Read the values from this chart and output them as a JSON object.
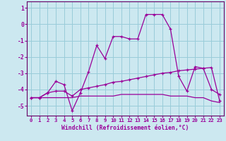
{
  "xlabel": "Windchill (Refroidissement éolien,°C)",
  "background_color": "#cce8f0",
  "grid_color": "#99ccd9",
  "line_color": "#990099",
  "spine_color": "#660066",
  "hours": [
    0,
    1,
    2,
    3,
    4,
    5,
    6,
    7,
    8,
    9,
    10,
    11,
    12,
    13,
    14,
    15,
    16,
    17,
    18,
    19,
    20,
    21,
    22,
    23
  ],
  "series1": [
    -4.5,
    -4.5,
    -4.2,
    -3.5,
    -3.7,
    -5.3,
    -4.2,
    -2.9,
    -1.3,
    -2.1,
    -0.75,
    -0.75,
    -0.9,
    -0.9,
    0.6,
    0.6,
    0.6,
    -0.3,
    -3.2,
    -4.1,
    -2.6,
    -2.7,
    -4.0,
    -4.3
  ],
  "series2": [
    -4.5,
    -4.5,
    -4.2,
    -4.1,
    -4.1,
    -4.4,
    -4.0,
    -3.9,
    -3.8,
    -3.7,
    -3.55,
    -3.5,
    -3.4,
    -3.3,
    -3.2,
    -3.1,
    -3.0,
    -2.95,
    -2.85,
    -2.8,
    -2.75,
    -2.7,
    -2.65,
    -4.7
  ],
  "series3": [
    -4.5,
    -4.5,
    -4.5,
    -4.5,
    -4.5,
    -4.5,
    -4.4,
    -4.4,
    -4.4,
    -4.4,
    -4.4,
    -4.3,
    -4.3,
    -4.3,
    -4.3,
    -4.3,
    -4.3,
    -4.4,
    -4.4,
    -4.4,
    -4.5,
    -4.5,
    -4.7,
    -4.8
  ],
  "ylim": [
    -5.6,
    1.4
  ],
  "yticks": [
    1,
    0,
    -1,
    -2,
    -3,
    -4,
    -5
  ],
  "xlim": [
    -0.5,
    23.5
  ],
  "xlabel_fontsize": 5.8,
  "tick_fontsize": 5.2,
  "ytick_fontsize": 5.8
}
